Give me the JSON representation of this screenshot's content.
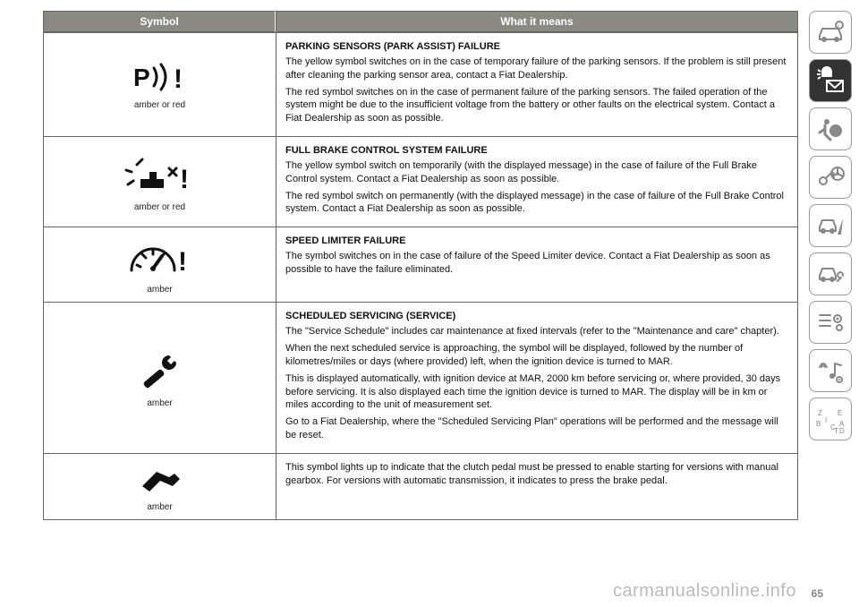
{
  "table": {
    "header": {
      "symbol": "Symbol",
      "meaning": "What it means"
    },
    "rows": [
      {
        "icon": "parking",
        "caption": "amber or red",
        "title": "PARKING SENSORS (PARK ASSIST) FAILURE",
        "paras": [
          "The yellow symbol switches on in the case of temporary failure of the parking sensors. If the problem is still present after cleaning the parking sensor area, contact a Fiat Dealership.",
          "The red symbol switches on in the case of permanent failure of the parking sensors. The failed operation of the system might be due to the insufficient voltage from the battery or other faults on the electrical system. Contact a Fiat Dealership as soon as possible."
        ]
      },
      {
        "icon": "fullbrake",
        "caption": "amber or red",
        "title": "FULL BRAKE CONTROL SYSTEM FAILURE",
        "paras": [
          "The yellow symbol switch on temporarily (with the displayed message) in the case of failure of the Full Brake Control system. Contact a Fiat Dealership as soon as possible.",
          "The red symbol switch on permanently (with the displayed message) in the case of failure of the Full Brake Control system. Contact a Fiat Dealership as soon as possible."
        ]
      },
      {
        "icon": "speedlimiter",
        "caption": "amber",
        "title": "SPEED LIMITER FAILURE",
        "paras": [
          "The symbol switches on in the case of failure of the Speed Limiter device. Contact a Fiat Dealership as soon as possible to have the failure eliminated."
        ]
      },
      {
        "icon": "service",
        "caption": "amber",
        "title": "SCHEDULED SERVICING (SERVICE)",
        "paras": [
          "The \"Service Schedule\" includes car maintenance at fixed intervals (refer to the \"Maintenance and care\" chapter).",
          "When the next scheduled service is approaching, the symbol will be displayed, followed by the number of kilometres/miles or days (where provided) left, when the ignition device is turned to MAR.",
          "This is displayed automatically, with ignition device at MAR, 2000 km before servicing or, where provided, 30 days before servicing. It is also displayed each time the ignition device is turned to MAR. The display will be in km or miles according to the unit of measurement set.",
          "Go to a Fiat Dealership, where the \"Scheduled Servicing Plan\" operations will be performed and the message will be reset."
        ]
      },
      {
        "icon": "clutch",
        "caption": "amber",
        "title": "",
        "paras": [
          "This symbol lights up to indicate that the clutch pedal must be pressed to enable starting for versions with manual gearbox. For versions with automatic transmission, it indicates to press the brake pedal."
        ]
      }
    ]
  },
  "sidebar": [
    {
      "name": "nav-car-info",
      "icon": "car-i",
      "active": false
    },
    {
      "name": "nav-warnings",
      "icon": "light-mail",
      "active": true
    },
    {
      "name": "nav-safety",
      "icon": "airbag",
      "active": false
    },
    {
      "name": "nav-key-wheel",
      "icon": "key-wheel",
      "active": false
    },
    {
      "name": "nav-road",
      "icon": "car-road",
      "active": false
    },
    {
      "name": "nav-service",
      "icon": "car-wrench",
      "active": false
    },
    {
      "name": "nav-settings",
      "icon": "list-gear",
      "active": false
    },
    {
      "name": "nav-media",
      "icon": "signal-music",
      "active": false
    },
    {
      "name": "nav-index",
      "icon": "letters",
      "active": false
    }
  ],
  "watermark": "carmanualsonline.info",
  "pagenum": "65"
}
